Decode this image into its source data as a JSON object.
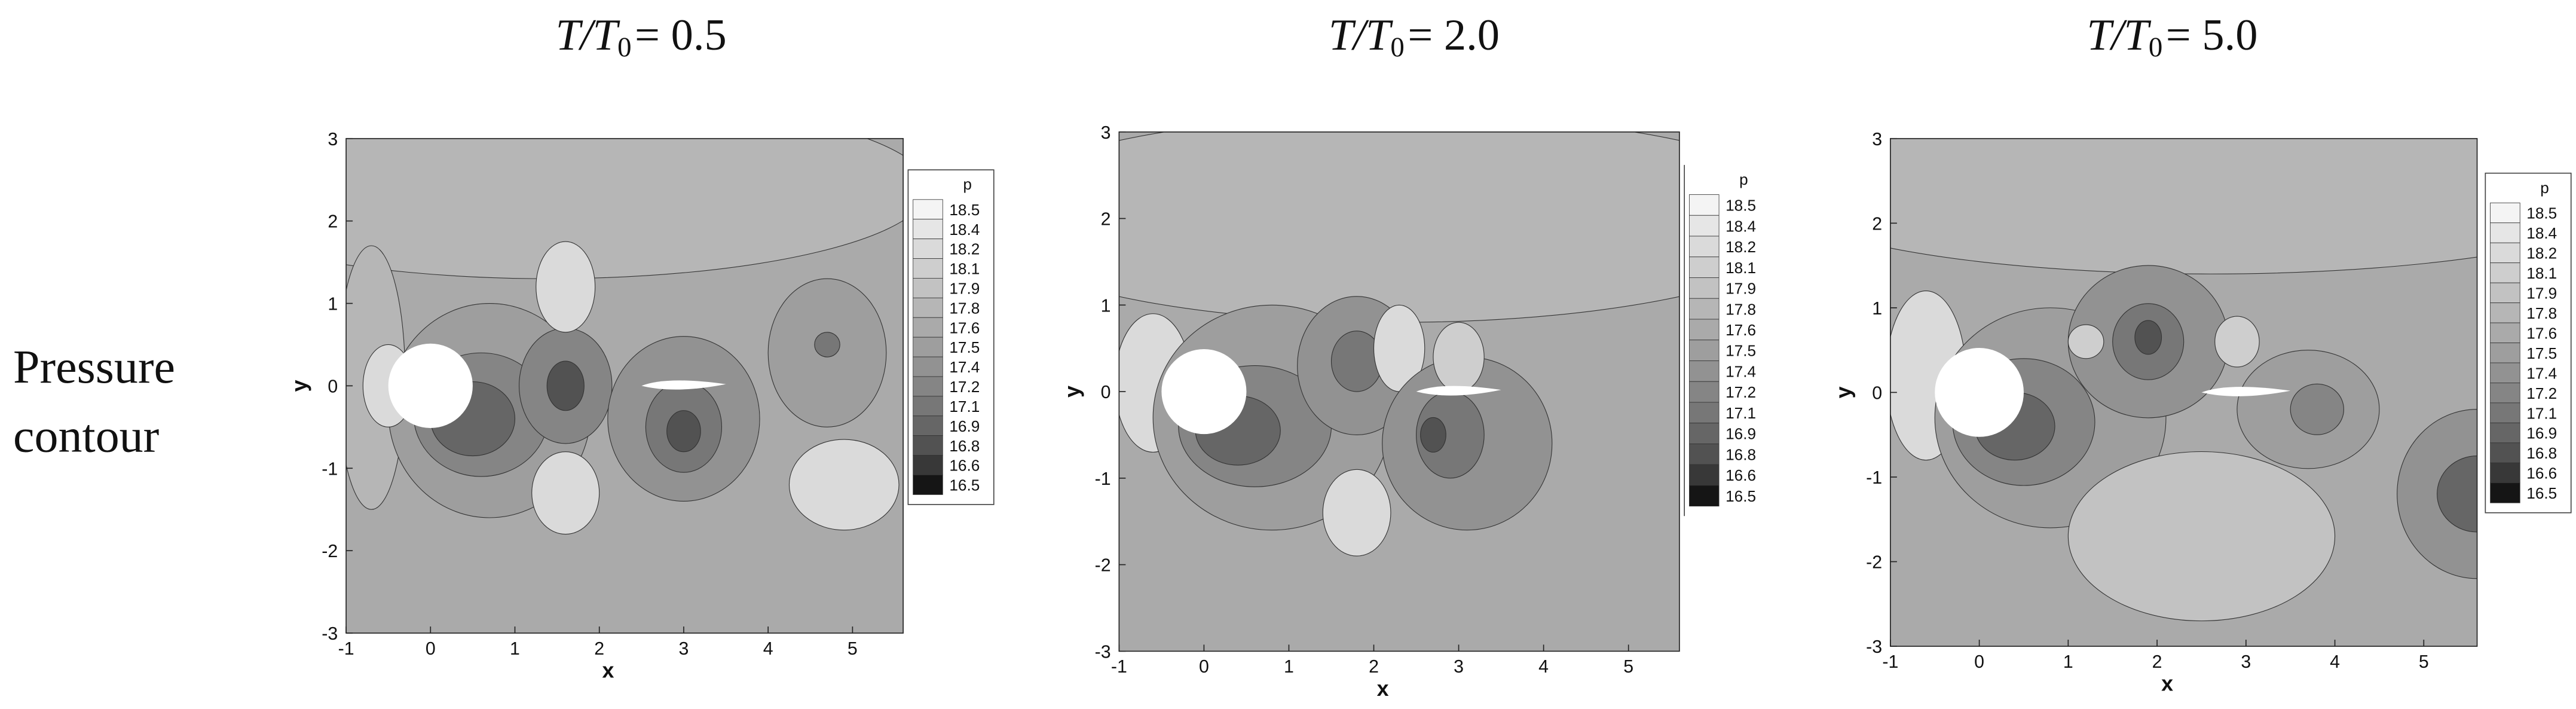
{
  "row_label": [
    "Pressure",
    "contour"
  ],
  "chart_data": [
    {
      "type": "contour",
      "title_main": "T/T",
      "title_sub": "0",
      "title_value": "= 0.5",
      "xlabel": "x",
      "ylabel": "y",
      "xlim": [
        -1,
        5.6
      ],
      "ylim": [
        -3,
        3
      ],
      "xticks": [
        -1,
        0,
        1,
        2,
        3,
        4,
        5
      ],
      "yticks": [
        -3,
        -2,
        -1,
        0,
        1,
        2,
        3
      ],
      "legend_title": "p",
      "levels": [
        18.5,
        18.4,
        18.2,
        18.1,
        17.9,
        17.8,
        17.6,
        17.5,
        17.4,
        17.2,
        17.1,
        16.9,
        16.8,
        16.6,
        16.5
      ],
      "colors": [
        "#f4f4f4",
        "#e6e6e6",
        "#dadada",
        "#cecece",
        "#c2c2c2",
        "#b6b6b6",
        "#aaaaaa",
        "#9e9e9e",
        "#929292",
        "#858585",
        "#777777",
        "#666666",
        "#525252",
        "#383838",
        "#151515"
      ]
    },
    {
      "type": "contour",
      "title_main": "T/T",
      "title_sub": "0",
      "title_value": "= 2.0",
      "xlabel": "x",
      "ylabel": "y",
      "xlim": [
        -1,
        5.6
      ],
      "ylim": [
        -3,
        3
      ],
      "xticks": [
        -1,
        0,
        1,
        2,
        3,
        4,
        5
      ],
      "yticks": [
        -3,
        -2,
        -1,
        0,
        1,
        2,
        3
      ],
      "legend_title": "p",
      "levels": [
        18.5,
        18.4,
        18.2,
        18.1,
        17.9,
        17.8,
        17.6,
        17.5,
        17.4,
        17.2,
        17.1,
        16.9,
        16.8,
        16.6,
        16.5
      ],
      "colors": [
        "#f4f4f4",
        "#e6e6e6",
        "#dadada",
        "#cecece",
        "#c2c2c2",
        "#b6b6b6",
        "#aaaaaa",
        "#9e9e9e",
        "#929292",
        "#858585",
        "#777777",
        "#666666",
        "#525252",
        "#383838",
        "#151515"
      ]
    },
    {
      "type": "contour",
      "title_main": "T/T",
      "title_sub": "0",
      "title_value": "= 5.0",
      "xlabel": "x",
      "ylabel": "y",
      "xlim": [
        -1,
        5.6
      ],
      "ylim": [
        -3,
        3
      ],
      "xticks": [
        -1,
        0,
        1,
        2,
        3,
        4,
        5
      ],
      "yticks": [
        -3,
        -2,
        -1,
        0,
        1,
        2,
        3
      ],
      "legend_title": "p",
      "levels": [
        18.5,
        18.4,
        18.2,
        18.1,
        17.9,
        17.8,
        17.6,
        17.5,
        17.4,
        17.2,
        17.1,
        16.9,
        16.8,
        16.6,
        16.5
      ],
      "colors": [
        "#f4f4f4",
        "#e6e6e6",
        "#dadada",
        "#cecece",
        "#c2c2c2",
        "#b6b6b6",
        "#aaaaaa",
        "#9e9e9e",
        "#929292",
        "#858585",
        "#777777",
        "#666666",
        "#525252",
        "#383838",
        "#151515"
      ]
    }
  ]
}
